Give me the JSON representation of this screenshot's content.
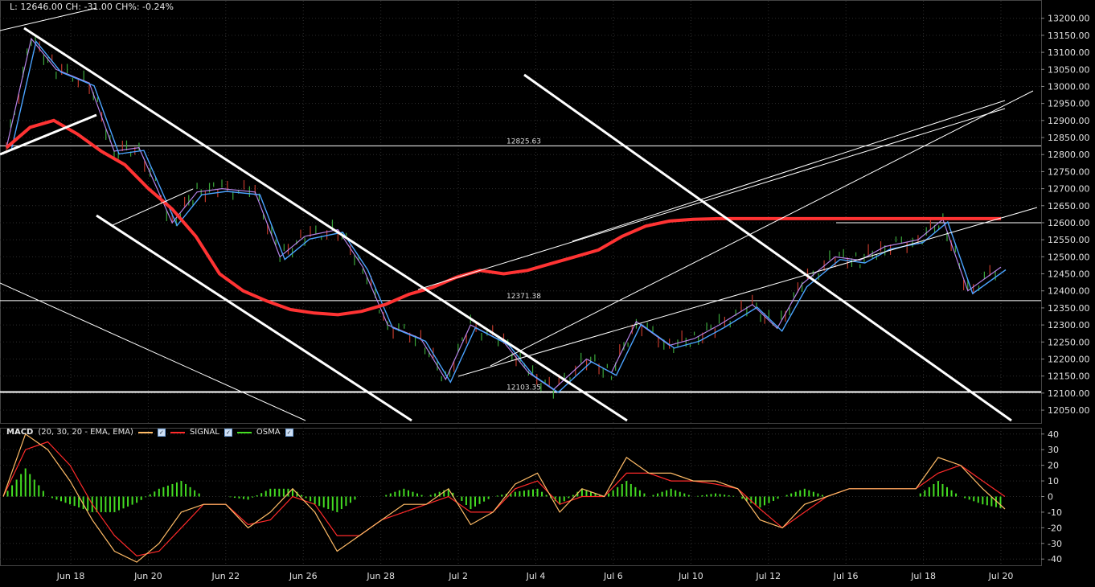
{
  "header": {
    "quote_line": "L: 12646.00 CH: -31.00 CH%: -0.24%"
  },
  "macd_legend": {
    "name": "MACD",
    "params": "(20, 30, 20 - EMA, EMA)",
    "signal_label": "SIGNAL",
    "osma_label": "OSMA"
  },
  "colors": {
    "background": "#000000",
    "grid": "#2e2e2e",
    "price_bars": "#3aa63a",
    "price_bars_alt": "#c0392b",
    "ma_slow": "#ff3333",
    "ma_fast_blue": "#4aa3ff",
    "ma_fast_purple": "#c890ff",
    "macd_line": "#ffbb66",
    "signal_line": "#ff2a2a",
    "osma": "#44dd22",
    "trendlines": "#ffffff"
  },
  "chart_data": [
    {
      "type": "line",
      "title": "",
      "x_ticks": [
        "Jun 18",
        "Jun 20",
        "Jun 22",
        "Jun 26",
        "Jun 28",
        "Jul 2",
        "Jul 4",
        "Jul 6",
        "Jul 10",
        "Jul 12",
        "Jul 16",
        "Jul 18",
        "Jul 20"
      ],
      "y_ticks": [
        13200,
        13150,
        13100,
        13050,
        13000,
        12950,
        12900,
        12850,
        12800,
        12750,
        12700,
        12650,
        12600,
        12550,
        12500,
        12450,
        12400,
        12350,
        12300,
        12250,
        12200,
        12150,
        12100,
        12050
      ],
      "y_tick_labels": [
        "13200.00",
        "13150.00",
        "13100.00",
        "13050.00",
        "13000.00",
        "12950.00",
        "12900.00",
        "12850.00",
        "12800.00",
        "12750.00",
        "12700.00",
        "12650.00",
        "12600.00",
        "12550.00",
        "12500.00",
        "12450.00",
        "12400.00",
        "12350.00",
        "12300.00",
        "12250.00",
        "12200.00",
        "12150.00",
        "12100.00",
        "12050.00"
      ],
      "ylim": [
        12010,
        13230
      ],
      "horizontal_levels": [
        {
          "value": 12825.63,
          "label": "12825.63"
        },
        {
          "value": 12371.38,
          "label": "12371.38"
        },
        {
          "value": 12103.35,
          "label": "12103.35"
        }
      ],
      "series": [
        {
          "kind": "price",
          "x": [
            0,
            0.3,
            0.6,
            1,
            1.3,
            1.6,
            2,
            2.3,
            2.6,
            3,
            3.3,
            3.6,
            4,
            4.3,
            4.6,
            5,
            5.3,
            5.6,
            6,
            6.3,
            6.6,
            7,
            7.3,
            7.6,
            8,
            8.3,
            8.6,
            9,
            9.3,
            9.6,
            10,
            10.3,
            10.6,
            11,
            11.3,
            11.6,
            12
          ],
          "values": [
            12820,
            13140,
            13050,
            13010,
            12810,
            12820,
            12600,
            12690,
            12700,
            12690,
            12500,
            12560,
            12580,
            12470,
            12300,
            12260,
            12140,
            12300,
            12250,
            12160,
            12110,
            12200,
            12160,
            12310,
            12240,
            12260,
            12300,
            12360,
            12290,
            12420,
            12500,
            12490,
            12530,
            12550,
            12610,
            12400,
            12470
          ]
        },
        {
          "kind": "ma-slow",
          "x": [
            0,
            0.5,
            1,
            1.5,
            2,
            2.5,
            3,
            3.5,
            4,
            4.5,
            5,
            5.5,
            6,
            6.5,
            7,
            7.5,
            8,
            8.5,
            9,
            9.5,
            10,
            10.5,
            11,
            11.5,
            12,
            12.5,
            13,
            13.5,
            14,
            14.5,
            15,
            15.5,
            16,
            16.5,
            17,
            17.5,
            18,
            18.5,
            19,
            19.5,
            20,
            20.5,
            21
          ],
          "values": [
            12820,
            12880,
            12900,
            12860,
            12810,
            12770,
            12700,
            12640,
            12560,
            12450,
            12400,
            12370,
            12345,
            12335,
            12330,
            12340,
            12360,
            12390,
            12410,
            12440,
            12460,
            12450,
            12460,
            12480,
            12500,
            12520,
            12560,
            12590,
            12605,
            12610,
            12612,
            12612,
            12612,
            12612,
            12612,
            12612,
            12612,
            12612,
            12612,
            12612,
            12612,
            12612,
            12612
          ]
        }
      ]
    },
    {
      "type": "bar",
      "title": "MACD (20, 30, 20 - EMA, EMA)",
      "y_ticks": [
        40,
        30,
        20,
        10,
        0,
        -10,
        -20,
        -30,
        -40
      ],
      "ylim": [
        -44,
        44
      ],
      "series": [
        {
          "name": "MACD",
          "values": [
            0,
            40,
            30,
            10,
            -15,
            -35,
            -42,
            -30,
            -10,
            -5,
            -5,
            -20,
            -10,
            5,
            -10,
            -35,
            -25,
            -15,
            -5,
            -5,
            5,
            -18,
            -10,
            8,
            15,
            -10,
            5,
            0,
            25,
            15,
            15,
            10,
            10,
            5,
            -15,
            -20,
            -5,
            0,
            5,
            5,
            5,
            5,
            25,
            20,
            5,
            -8
          ]
        },
        {
          "name": "SIGNAL",
          "values": [
            0,
            30,
            35,
            20,
            -5,
            -25,
            -38,
            -35,
            -20,
            -5,
            -5,
            -18,
            -15,
            0,
            -5,
            -25,
            -25,
            -15,
            -10,
            -5,
            0,
            -10,
            -10,
            5,
            10,
            -5,
            0,
            0,
            15,
            15,
            10,
            10,
            8,
            5,
            -8,
            -20,
            -10,
            0,
            5,
            5,
            5,
            5,
            15,
            20,
            10,
            0
          ]
        },
        {
          "name": "OSMA",
          "values": [
            0,
            18,
            0,
            -5,
            -10,
            -10,
            -4,
            5,
            10,
            0,
            0,
            -2,
            5,
            5,
            -5,
            -10,
            0,
            0,
            5,
            0,
            5,
            -8,
            0,
            3,
            5,
            -5,
            5,
            0,
            10,
            0,
            5,
            0,
            2,
            0,
            -7,
            0,
            5,
            0,
            0,
            0,
            0,
            0,
            10,
            0,
            -5,
            -8
          ]
        }
      ]
    }
  ]
}
